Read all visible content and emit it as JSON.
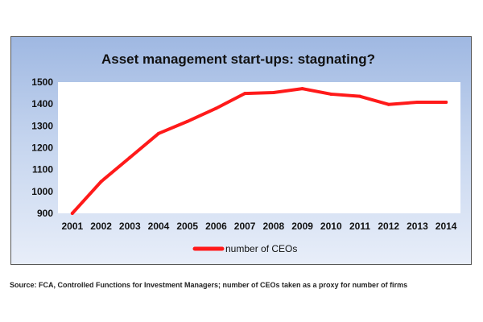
{
  "chart_data": {
    "type": "line",
    "title": "Asset management start-ups: stagnating?",
    "x": [
      "2001",
      "2002",
      "2003",
      "2004",
      "2005",
      "2006",
      "2007",
      "2008",
      "2009",
      "2010",
      "2011",
      "2012",
      "2013",
      "2014"
    ],
    "series": [
      {
        "name": "number of CEOs",
        "color": "#ff1a1a",
        "values": [
          900,
          1045,
          1155,
          1265,
          1320,
          1380,
          1448,
          1452,
          1470,
          1445,
          1435,
          1398,
          1408,
          1408
        ]
      }
    ],
    "ylim": [
      900,
      1500
    ],
    "yticks": [
      900,
      1000,
      1100,
      1200,
      1300,
      1400,
      1500
    ],
    "xlabel": "",
    "ylabel": "",
    "grid": false,
    "legend_position": "bottom",
    "plot_background": "#ffffff"
  },
  "source_note": "Source: FCA, Controlled Functions for Investment Managers; number of CEOs taken as a proxy for number of firms"
}
